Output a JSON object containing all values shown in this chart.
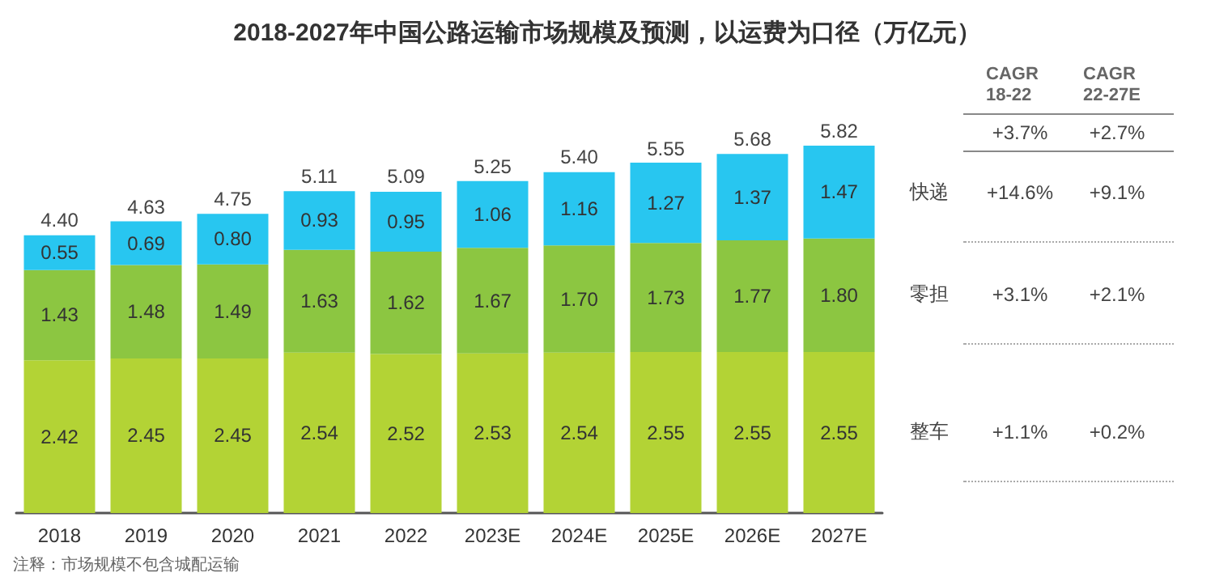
{
  "chart_data": {
    "type": "bar",
    "title": "2018-2027年中国公路运输市场规模及预测，以运费为口径（万亿元）",
    "categories": [
      "2018",
      "2019",
      "2020",
      "2021",
      "2022",
      "2023E",
      "2024E",
      "2025E",
      "2026E",
      "2027E"
    ],
    "stacked": true,
    "series": [
      {
        "name": "整车",
        "color": "#b3d335",
        "values": [
          2.42,
          2.45,
          2.45,
          2.54,
          2.52,
          2.53,
          2.54,
          2.55,
          2.55,
          2.55
        ],
        "value_labels": [
          "2.42",
          "2.45",
          "2.45",
          "2.54",
          "2.52",
          "2.53",
          "2.54",
          "2.55",
          "2.55",
          "2.55"
        ]
      },
      {
        "name": "零担",
        "color": "#8cc641",
        "values": [
          1.43,
          1.48,
          1.49,
          1.63,
          1.62,
          1.67,
          1.7,
          1.73,
          1.77,
          1.8
        ],
        "value_labels": [
          "1.43",
          "1.48",
          "1.49",
          "1.63",
          "1.62",
          "1.67",
          "1.70",
          "1.73",
          "1.77",
          "1.80"
        ]
      },
      {
        "name": "快递",
        "color": "#28c6f0",
        "values": [
          0.55,
          0.69,
          0.8,
          0.93,
          0.95,
          1.06,
          1.16,
          1.27,
          1.37,
          1.47
        ],
        "value_labels": [
          "0.55",
          "0.69",
          "0.80",
          "0.93",
          "0.95",
          "1.06",
          "1.16",
          "1.27",
          "1.37",
          "1.47"
        ]
      }
    ],
    "totals": [
      "4.40",
      "4.63",
      "4.75",
      "5.11",
      "5.09",
      "5.25",
      "5.40",
      "5.55",
      "5.68",
      "5.82"
    ],
    "annotations": [
      "CAGR 18-22",
      "CAGR 22-27E",
      "+3.7%",
      "+2.7%",
      "+14.6%",
      "+9.1%",
      "+3.1%",
      "+2.1%",
      "+1.1%",
      "+0.2%",
      "注释：市场规模不包含城配运输"
    ]
  }
}
